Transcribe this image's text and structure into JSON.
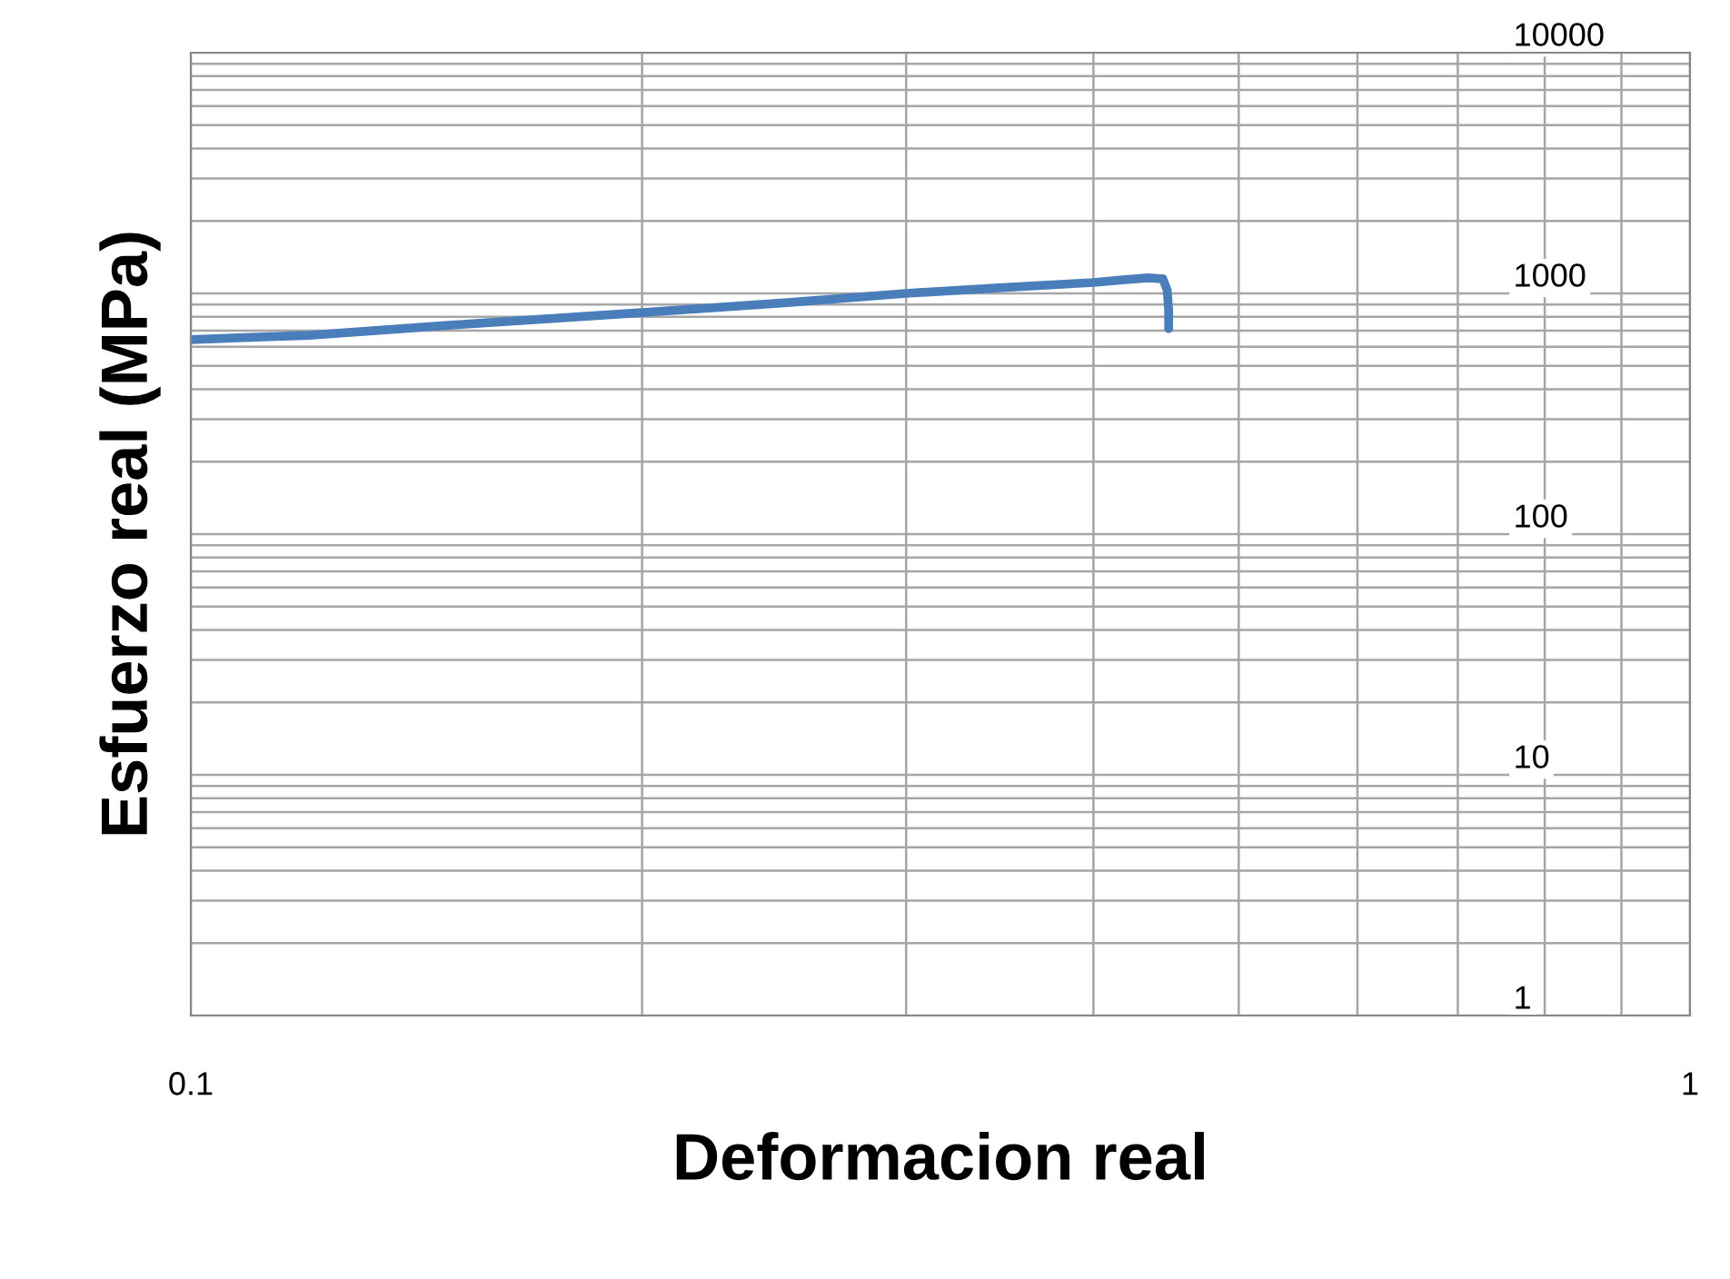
{
  "chart_data": {
    "type": "line",
    "xlabel": "Deformacion real",
    "ylabel": "Esfuerzo real (MPa)",
    "log": "xy",
    "xlim": [
      0.1,
      1
    ],
    "ylim": [
      1,
      10000
    ],
    "xticks": [
      0.1,
      1
    ],
    "yticks": [
      1,
      10,
      100,
      1000,
      10000
    ],
    "grid": true,
    "series": [
      {
        "color": "#4a7ebb",
        "x": [
          0.1,
          0.12,
          0.15,
          0.2,
          0.25,
          0.3,
          0.35,
          0.4,
          0.42,
          0.435,
          0.445,
          0.448,
          0.449,
          0.449
        ],
        "values": [
          643,
          670,
          740,
          833,
          915,
          1000,
          1060,
          1110,
          1140,
          1160,
          1150,
          1030,
          850,
          713
        ]
      }
    ]
  }
}
